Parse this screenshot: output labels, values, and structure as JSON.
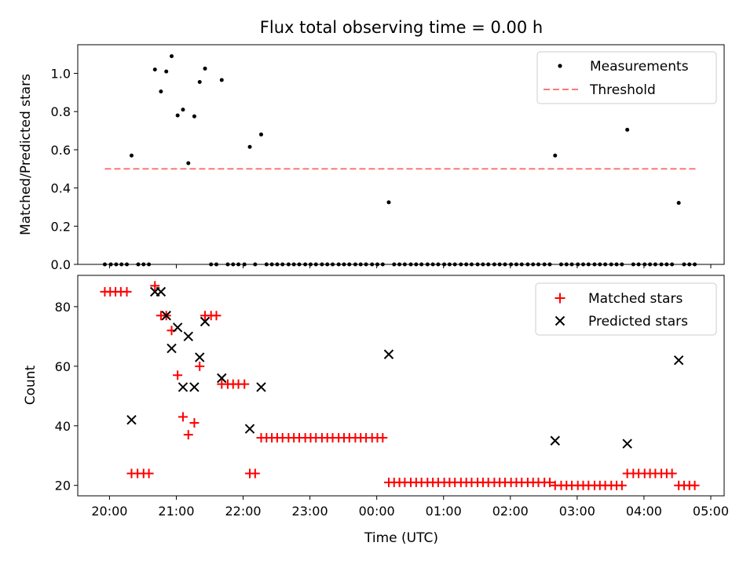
{
  "chart_data": {
    "title": "Flux total observing time = 0.00 h",
    "xlabel": "Time (UTC)",
    "x_unit": "hours",
    "x_ticks": [
      {
        "x": 20,
        "label": "20:00"
      },
      {
        "x": 21,
        "label": "21:00"
      },
      {
        "x": 22,
        "label": "22:00"
      },
      {
        "x": 23,
        "label": "23:00"
      },
      {
        "x": 24,
        "label": "00:00"
      },
      {
        "x": 25,
        "label": "01:00"
      },
      {
        "x": 26,
        "label": "02:00"
      },
      {
        "x": 27,
        "label": "03:00"
      },
      {
        "x": 28,
        "label": "04:00"
      },
      {
        "x": 29,
        "label": "05:00"
      }
    ],
    "xlim": [
      19.525,
      29.2
    ],
    "panels": [
      {
        "type": "scatter",
        "ylabel": "Matched/Predicted stars",
        "ylim": [
          0,
          1.15
        ],
        "yticks": [
          {
            "v": 0.0,
            "label": "0.0"
          },
          {
            "v": 0.2,
            "label": "0.2"
          },
          {
            "v": 0.4,
            "label": "0.4"
          },
          {
            "v": 0.6,
            "label": "0.6"
          },
          {
            "v": 0.8,
            "label": "0.8"
          },
          {
            "v": 1.0,
            "label": "1.0"
          }
        ],
        "legend_position": "top-right",
        "legend": [
          {
            "label": "Measurements",
            "marker": "dot",
            "color": "#000000"
          },
          {
            "label": "Threshold",
            "marker": "dashed-line",
            "color": "#ff7777"
          }
        ],
        "threshold": {
          "value": 0.5,
          "x_start": 19.93,
          "x_end": 28.78
        },
        "nonzero_points": [
          [
            20.33,
            0.57
          ],
          [
            20.68,
            1.02
          ],
          [
            20.77,
            0.905
          ],
          [
            20.85,
            1.01
          ],
          [
            20.93,
            1.09
          ],
          [
            21.02,
            0.78
          ],
          [
            21.1,
            0.81
          ],
          [
            21.18,
            0.53
          ],
          [
            21.27,
            0.775
          ],
          [
            21.35,
            0.955
          ],
          [
            21.43,
            1.025
          ],
          [
            21.68,
            0.965
          ],
          [
            22.1,
            0.615
          ],
          [
            22.27,
            0.68
          ],
          [
            24.18,
            0.325
          ],
          [
            26.67,
            0.57
          ],
          [
            27.75,
            0.705
          ],
          [
            28.52,
            0.322
          ]
        ],
        "zero_point_x": [
          19.93,
          20.02,
          20.1,
          20.18,
          20.26,
          20.43,
          20.51,
          20.59,
          21.52,
          21.6,
          21.77,
          21.85,
          21.93,
          22.02,
          22.18,
          22.35,
          22.43,
          22.51,
          22.59,
          22.68,
          22.76,
          22.84,
          22.93,
          23.01,
          23.09,
          23.18,
          23.26,
          23.34,
          23.43,
          23.51,
          23.59,
          23.68,
          23.76,
          23.84,
          23.93,
          24.01,
          24.09,
          24.26,
          24.34,
          24.42,
          24.51,
          24.59,
          24.67,
          24.76,
          24.84,
          24.92,
          25.01,
          25.09,
          25.17,
          25.26,
          25.34,
          25.42,
          25.51,
          25.59,
          25.67,
          25.76,
          25.84,
          25.92,
          26.01,
          26.09,
          26.17,
          26.26,
          26.34,
          26.42,
          26.51,
          26.59,
          26.76,
          26.84,
          26.92,
          27.01,
          27.09,
          27.17,
          27.26,
          27.34,
          27.42,
          27.51,
          27.59,
          27.67,
          27.84,
          27.92,
          28.01,
          28.09,
          28.17,
          28.26,
          28.34,
          28.42,
          28.6,
          28.68,
          28.76
        ]
      },
      {
        "type": "scatter",
        "ylabel": "Count",
        "ylim": [
          16.5,
          90.5
        ],
        "yticks": [
          {
            "v": 20,
            "label": "20"
          },
          {
            "v": 40,
            "label": "40"
          },
          {
            "v": 60,
            "label": "60"
          },
          {
            "v": 80,
            "label": "80"
          }
        ],
        "legend_position": "top-right",
        "legend": [
          {
            "label": "Matched stars",
            "marker": "plus",
            "color": "#ff0000"
          },
          {
            "label": "Predicted stars",
            "marker": "x",
            "color": "#000000"
          }
        ],
        "matched_stars": [
          [
            19.93,
            85
          ],
          [
            20.01,
            85
          ],
          [
            20.09,
            85
          ],
          [
            20.17,
            85
          ],
          [
            20.26,
            85
          ],
          [
            20.33,
            24
          ],
          [
            20.42,
            24
          ],
          [
            20.51,
            24
          ],
          [
            20.59,
            24
          ],
          [
            20.68,
            87
          ],
          [
            20.77,
            77
          ],
          [
            20.85,
            77
          ],
          [
            20.93,
            72
          ],
          [
            21.02,
            57
          ],
          [
            21.1,
            43
          ],
          [
            21.18,
            37
          ],
          [
            21.27,
            41
          ],
          [
            21.35,
            60
          ],
          [
            21.43,
            77
          ],
          [
            21.52,
            77
          ],
          [
            21.6,
            77
          ],
          [
            21.68,
            54
          ],
          [
            21.77,
            54
          ],
          [
            21.85,
            54
          ],
          [
            21.93,
            54
          ],
          [
            22.02,
            54
          ],
          [
            22.1,
            24
          ],
          [
            22.18,
            24
          ],
          [
            22.27,
            36
          ],
          [
            22.35,
            36
          ],
          [
            22.43,
            36
          ],
          [
            22.51,
            36
          ],
          [
            22.59,
            36
          ],
          [
            22.68,
            36
          ],
          [
            22.76,
            36
          ],
          [
            22.84,
            36
          ],
          [
            22.93,
            36
          ],
          [
            23.01,
            36
          ],
          [
            23.09,
            36
          ],
          [
            23.18,
            36
          ],
          [
            23.26,
            36
          ],
          [
            23.34,
            36
          ],
          [
            23.43,
            36
          ],
          [
            23.51,
            36
          ],
          [
            23.59,
            36
          ],
          [
            23.68,
            36
          ],
          [
            23.76,
            36
          ],
          [
            23.84,
            36
          ],
          [
            23.93,
            36
          ],
          [
            24.01,
            36
          ],
          [
            24.09,
            36
          ],
          [
            24.18,
            21
          ],
          [
            24.26,
            21
          ],
          [
            24.34,
            21
          ],
          [
            24.42,
            21
          ],
          [
            24.51,
            21
          ],
          [
            24.59,
            21
          ],
          [
            24.67,
            21
          ],
          [
            24.76,
            21
          ],
          [
            24.84,
            21
          ],
          [
            24.92,
            21
          ],
          [
            25.01,
            21
          ],
          [
            25.09,
            21
          ],
          [
            25.17,
            21
          ],
          [
            25.26,
            21
          ],
          [
            25.34,
            21
          ],
          [
            25.42,
            21
          ],
          [
            25.51,
            21
          ],
          [
            25.59,
            21
          ],
          [
            25.67,
            21
          ],
          [
            25.76,
            21
          ],
          [
            25.84,
            21
          ],
          [
            25.92,
            21
          ],
          [
            26.01,
            21
          ],
          [
            26.09,
            21
          ],
          [
            26.17,
            21
          ],
          [
            26.26,
            21
          ],
          [
            26.34,
            21
          ],
          [
            26.42,
            21
          ],
          [
            26.51,
            21
          ],
          [
            26.59,
            21
          ],
          [
            26.67,
            20
          ],
          [
            26.76,
            20
          ],
          [
            26.84,
            20
          ],
          [
            26.92,
            20
          ],
          [
            27.01,
            20
          ],
          [
            27.09,
            20
          ],
          [
            27.17,
            20
          ],
          [
            27.26,
            20
          ],
          [
            27.34,
            20
          ],
          [
            27.42,
            20
          ],
          [
            27.51,
            20
          ],
          [
            27.59,
            20
          ],
          [
            27.67,
            20
          ],
          [
            27.75,
            24
          ],
          [
            27.84,
            24
          ],
          [
            27.92,
            24
          ],
          [
            28.01,
            24
          ],
          [
            28.09,
            24
          ],
          [
            28.17,
            24
          ],
          [
            28.26,
            24
          ],
          [
            28.34,
            24
          ],
          [
            28.42,
            24
          ],
          [
            28.52,
            20
          ],
          [
            28.6,
            20
          ],
          [
            28.68,
            20
          ],
          [
            28.76,
            20
          ]
        ],
        "predicted_stars": [
          [
            20.33,
            42
          ],
          [
            20.68,
            85
          ],
          [
            20.77,
            85
          ],
          [
            20.85,
            77
          ],
          [
            20.93,
            66
          ],
          [
            21.02,
            73
          ],
          [
            21.1,
            53
          ],
          [
            21.18,
            70
          ],
          [
            21.27,
            53
          ],
          [
            21.35,
            63
          ],
          [
            21.43,
            75
          ],
          [
            21.68,
            56
          ],
          [
            22.1,
            39
          ],
          [
            22.27,
            53
          ],
          [
            24.18,
            64
          ],
          [
            26.67,
            35
          ],
          [
            27.75,
            34
          ],
          [
            28.52,
            62
          ]
        ]
      }
    ]
  }
}
